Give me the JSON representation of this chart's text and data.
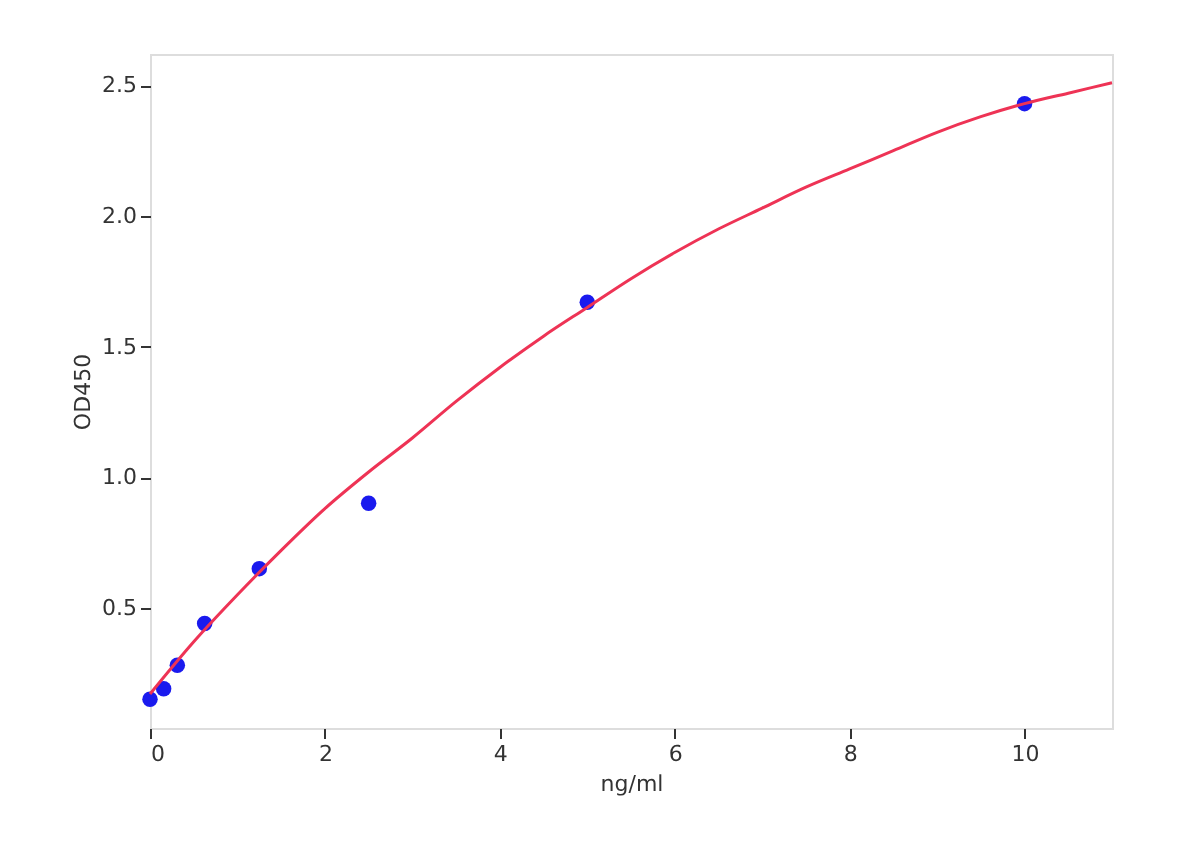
{
  "chart_data": {
    "type": "scatter",
    "xlabel": "ng/ml",
    "ylabel": "OD450",
    "xlim": [
      0,
      11
    ],
    "ylim": [
      0.04,
      2.62
    ],
    "xticks": [
      0,
      2,
      4,
      6,
      8,
      10
    ],
    "yticks": [
      0.5,
      {
        "value": 1,
        "label": "1.0"
      },
      1.5,
      {
        "value": 2,
        "label": "2.0"
      },
      2.5
    ],
    "grid": false,
    "marker": "circle",
    "series": [
      {
        "color": "#1a1aee",
        "x": [
          0,
          0.156,
          0.3125,
          0.625,
          1.25,
          2.5,
          5,
          10
        ],
        "values": [
          0.15,
          0.19,
          0.28,
          0.44,
          0.65,
          0.9,
          1.67,
          2.43
        ]
      },
      {
        "type": "line",
        "color": "#ee3355",
        "line_style": "solid",
        "marker": "none",
        "x": [
          0,
          0.5,
          1,
          1.5,
          2,
          2.5,
          3,
          3.5,
          4,
          4.5,
          5,
          5.5,
          6,
          6.5,
          7,
          7.5,
          8,
          8.5,
          9,
          9.5,
          10,
          10.5,
          11
        ],
        "values": [
          0.17,
          0.37,
          0.55,
          0.72,
          0.88,
          1.02,
          1.15,
          1.29,
          1.42,
          1.54,
          1.65,
          1.76,
          1.86,
          1.95,
          2.03,
          2.11,
          2.18,
          2.25,
          2.32,
          2.38,
          2.43,
          2.47,
          2.51
        ]
      }
    ]
  }
}
